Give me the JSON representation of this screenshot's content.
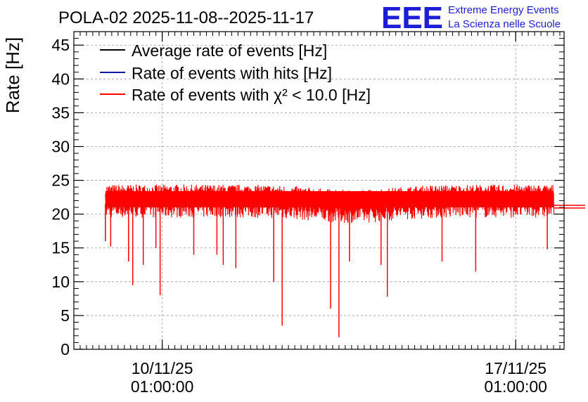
{
  "header": {
    "title": "POLA-02 2025-11-08--2025-11-17",
    "logo_letters": "EEE",
    "logo_line1": "Extreme Energy Events",
    "logo_line2": "La Scienza nelle Scuole"
  },
  "colors": {
    "average": "#000000",
    "hits": "#0a1aa0",
    "chi2": "#ff0000",
    "logo": "#1d1dd6",
    "grid": "#9a9a9a"
  },
  "chart_data": {
    "type": "line",
    "title": "POLA-02 2025-11-08--2025-11-17",
    "ylabel": "Rate [Hz]",
    "xlabel": "",
    "ylim": [
      0,
      47
    ],
    "xlim": [
      "2025-11-08 07:00",
      "2025-11-18 00:00"
    ],
    "grid": true,
    "legend_position": "top-left",
    "yticks": [
      "0",
      "5",
      "10",
      "15",
      "20",
      "25",
      "30",
      "35",
      "40",
      "45"
    ],
    "xticks": [
      {
        "x": "2025-11-10 01:00",
        "date": "10/11/25",
        "time": "01:00:00"
      },
      {
        "x": "2025-11-17 01:00",
        "date": "17/11/25",
        "time": "01:00:00"
      }
    ],
    "series": [
      {
        "name": "Average rate of events [Hz]",
        "color": "#000000"
      },
      {
        "name": "Rate of events with hits [Hz]",
        "color": "#0a1aa0"
      },
      {
        "name": "Rate of events with χ² < 10.0 [Hz]",
        "color": "#ff0000",
        "data_range": [
          "2025-11-08 22:00",
          "2025-11-17 19:00"
        ],
        "baseline_upper": 23.4,
        "baseline_lower": 21.0,
        "spikes": [
          {
            "x": "2025-11-08 22:00",
            "y": 16.0
          },
          {
            "x": "2025-11-09 00:30",
            "y": 15.2
          },
          {
            "x": "2025-11-09 09:00",
            "y": 13.0
          },
          {
            "x": "2025-11-09 11:00",
            "y": 9.5
          },
          {
            "x": "2025-11-09 16:00",
            "y": 12.5
          },
          {
            "x": "2025-11-09 22:00",
            "y": 15.0
          },
          {
            "x": "2025-11-10 00:00",
            "y": 8.0
          },
          {
            "x": "2025-11-10 16:00",
            "y": 14.0
          },
          {
            "x": "2025-11-11 03:00",
            "y": 14.0
          },
          {
            "x": "2025-11-11 06:00",
            "y": 12.5
          },
          {
            "x": "2025-11-11 12:00",
            "y": 12.0
          },
          {
            "x": "2025-11-12 06:00",
            "y": 10.0
          },
          {
            "x": "2025-11-12 10:00",
            "y": 3.5
          },
          {
            "x": "2025-11-13 09:00",
            "y": 6.0
          },
          {
            "x": "2025-11-13 13:00",
            "y": 1.8
          },
          {
            "x": "2025-11-13 18:00",
            "y": 13.0
          },
          {
            "x": "2025-11-14 09:00",
            "y": 12.5
          },
          {
            "x": "2025-11-14 12:00",
            "y": 7.8
          },
          {
            "x": "2025-11-15 14:00",
            "y": 13.0
          },
          {
            "x": "2025-11-16 06:00",
            "y": 11.5
          },
          {
            "x": "2025-11-17 16:00",
            "y": 14.8
          }
        ],
        "tail": {
          "from": "2025-11-17 19:00",
          "y1": 21.3,
          "y2": 20.9
        }
      }
    ]
  }
}
